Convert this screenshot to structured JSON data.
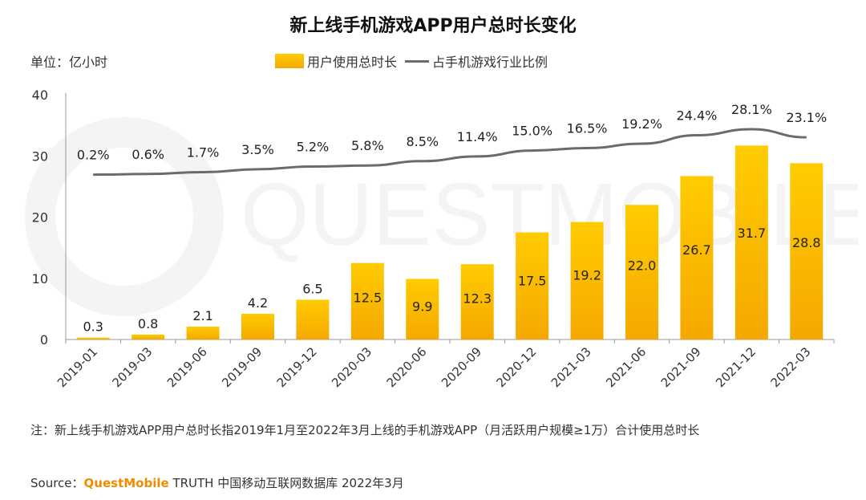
{
  "title": "新上线手机游戏APP用户总时长变化",
  "unit_label": "单位：亿小时",
  "legend": {
    "bar_label": "用户使用总时长",
    "line_label": "占手机游戏行业比例"
  },
  "watermark": "QUESTMOBILE",
  "note": "注：新上线手机游戏APP用户总时长指2019年1月至2022年3月上线的手机游戏APP（月活跃用户规模≥1万）合计使用总时长",
  "source": {
    "prefix": "Source：",
    "brand": "QuestMobile",
    "rest": " TRUTH 中国移动互联网数据库 2022年3月"
  },
  "colors": {
    "bar_top": "#ffcc00",
    "bar_bottom": "#f5a800",
    "line": "#6b6b6b",
    "brand": "#f08c00"
  },
  "chart_data": {
    "type": "bar",
    "title": "新上线手机游戏APP用户总时长变化",
    "categories": [
      "2019-01",
      "2019-03",
      "2019-06",
      "2019-09",
      "2019-12",
      "2020-03",
      "2020-06",
      "2020-09",
      "2020-12",
      "2021-03",
      "2021-06",
      "2021-09",
      "2021-12",
      "2022-03"
    ],
    "series": [
      {
        "name": "用户使用总时长",
        "type": "bar",
        "values": [
          0.3,
          0.8,
          2.1,
          4.2,
          6.5,
          12.5,
          9.9,
          12.3,
          17.5,
          19.2,
          22.0,
          26.7,
          31.7,
          28.8
        ],
        "labels": [
          "0.3",
          "0.8",
          "2.1",
          "4.2",
          "6.5",
          "12.5",
          "9.9",
          "12.3",
          "17.5",
          "19.2",
          "22.0",
          "26.7",
          "31.7",
          "28.8"
        ]
      },
      {
        "name": "占手机游戏行业比例",
        "type": "line",
        "values": [
          0.2,
          0.6,
          1.7,
          3.5,
          5.2,
          5.8,
          8.5,
          11.4,
          15.0,
          16.5,
          19.2,
          24.4,
          28.1,
          23.1
        ],
        "labels": [
          "0.2%",
          "0.6%",
          "1.7%",
          "3.5%",
          "5.2%",
          "5.8%",
          "8.5%",
          "11.4%",
          "15.0%",
          "16.5%",
          "19.2%",
          "24.4%",
          "28.1%",
          "23.1%"
        ]
      }
    ],
    "yaxis": {
      "label": "单位：亿小时",
      "ylim": [
        0,
        40
      ],
      "ticks": [
        "0",
        "10",
        "20",
        "30",
        "40"
      ]
    },
    "grid": false,
    "legend_position": "top-center"
  }
}
